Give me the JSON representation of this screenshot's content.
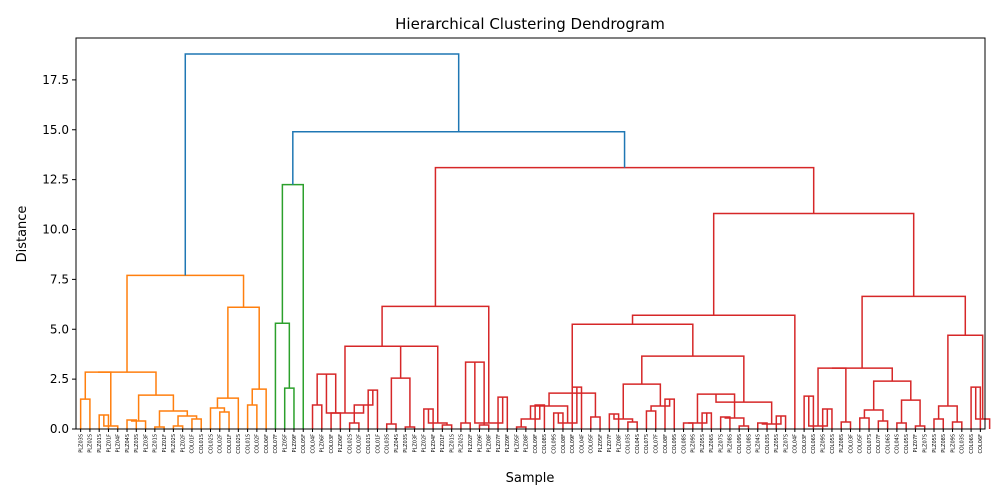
{
  "chart_data": {
    "type": "dendrogram",
    "title": "Hierarchical Clustering Dendrogram",
    "xlabel": "Sample",
    "ylabel": "Distance",
    "ylim": [
      0,
      19.6
    ],
    "yticks": [
      0.0,
      2.5,
      5.0,
      7.5,
      10.0,
      12.5,
      15.0,
      17.5
    ],
    "ytick_labels": [
      "0.0",
      "2.5",
      "5.0",
      "7.5",
      "10.0",
      "12.5",
      "15.0",
      "17.5"
    ],
    "grid": false,
    "colors": {
      "orange": "#ff7f0e",
      "green": "#2ca02c",
      "red": "#d62728",
      "blue": "#1f77b4"
    },
    "leaves": [
      "PLZ03S",
      "PLZ02S",
      "PLZ01S",
      "PLZ01F",
      "PLZ04F",
      "PLZ04S",
      "PLZ03S",
      "PLZ03F",
      "PLZ01S",
      "PLZ01F",
      "PLZ02S",
      "PLZ02F",
      "COL01F",
      "COL01S",
      "COL02S",
      "COL02F",
      "COL01F",
      "COL02S",
      "COL01S",
      "COL02F",
      "COL06F",
      "COL07F",
      "PLZ05F",
      "PLZ09F",
      "COL05F",
      "COL04F",
      "PLZ06F",
      "COL03F",
      "PLZ06F",
      "COL02S",
      "COL02F",
      "COL01S",
      "COL01F",
      "COL03S",
      "PLZ04S",
      "PLZ03S",
      "PLZ03F",
      "PLZ02F",
      "PLZ04F",
      "PLZ01F",
      "PLZ01S",
      "PLZ02S",
      "PLZ02F",
      "PLZ09F",
      "PLZ08F",
      "PLZ07F",
      "PLZ09F",
      "PLZ05F",
      "PLZ08F",
      "COL09F",
      "COL08S",
      "COL09S",
      "COL08F",
      "COL09F",
      "COL04F",
      "COL05F",
      "PLZ05F",
      "PLZ07F",
      "PLZ08F",
      "COL03S",
      "COL04S",
      "COL07S",
      "COL07F",
      "COL08F",
      "COL09S",
      "COL08S",
      "PLZ09S",
      "PLZ05S",
      "PLZ06S",
      "PLZ07S",
      "PLZ08S",
      "COL09S",
      "COL08S",
      "PLZ04S",
      "COL03S",
      "PLZ05S",
      "PLZ07S",
      "COL04F",
      "COL03F",
      "COL06S",
      "PLZ09S",
      "COL05S",
      "PLZ08S",
      "COL03F",
      "COL05F",
      "COL07S",
      "COL07F",
      "COL06S",
      "COL04S",
      "COL05S",
      "PLZ07F",
      "PLZ07S",
      "PLZ05S",
      "PLZ08S",
      "PLZ09S",
      "COL03S",
      "COL06S",
      "COL06F"
    ],
    "links": [
      {
        "color": "orange",
        "x": [
          1,
          2
        ],
        "yl": 0,
        "yr": 1.5,
        "h": 1.5
      },
      {
        "color": "orange",
        "x": [
          3,
          4
        ],
        "yl": 0,
        "yr": 0,
        "h": 0.7
      },
      {
        "color": "orange",
        "x": [
          5,
          6
        ],
        "yl": 0,
        "yr": 0,
        "h": 0.2
      },
      {
        "color": "orange",
        "x": [
          7,
          8
        ],
        "yl": 0,
        "yr": 0,
        "h": 0.2
      },
      {
        "color": "orange",
        "x": [
          9,
          10
        ],
        "yl": 0,
        "yr": 0,
        "h": 0.4
      },
      {
        "color": "orange",
        "x": [
          11,
          12
        ],
        "yl": 0,
        "yr": 0,
        "h": 0.1
      },
      {
        "color": "orange",
        "x": [
          13,
          14
        ],
        "yl": 0,
        "yr": 0,
        "h": 0.9
      },
      {
        "color": "orange",
        "x": [
          15,
          16
        ],
        "yl": 0,
        "yr": 0,
        "h": 0.7
      },
      {
        "color": "orange",
        "x": [
          17,
          18
        ],
        "yl": 0,
        "yr": 0,
        "h": 0.2
      },
      {
        "color": "orange",
        "x": [
          19,
          20
        ],
        "yl": 0,
        "yr": 0,
        "h": 0.5
      },
      {
        "color": "orange",
        "x": [
          21,
          22
        ],
        "yl": 0,
        "yr": 0,
        "h": 1.55
      },
      {
        "color": "orange",
        "x": [
          23,
          24
        ],
        "yl": 0,
        "yr": 0,
        "h": 1.05
      },
      {
        "color": "orange",
        "x": [
          25,
          26
        ],
        "yl": 0,
        "yr": 0,
        "h": 0.85
      },
      {
        "color": "orange",
        "x": [
          27,
          28
        ],
        "yl": 0,
        "yr": 0,
        "h": 2.0
      },
      {
        "color": "orange",
        "x": [
          29,
          30
        ],
        "yl": 0,
        "yr": 0,
        "h": 1.2
      },
      {
        "color": "orange",
        "x": [
          31,
          32
        ],
        "yl": 0,
        "yr": 0,
        "h": 0.3
      }
    ]
  }
}
